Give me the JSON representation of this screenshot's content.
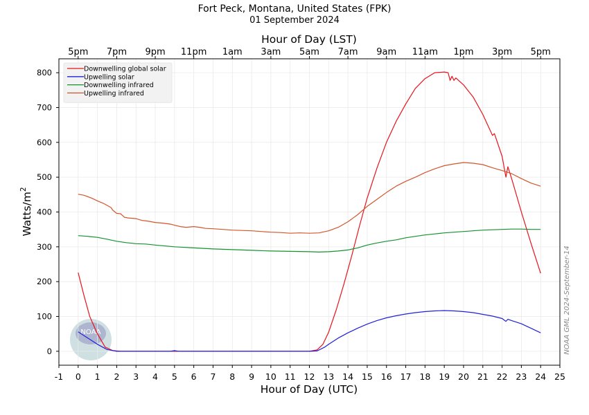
{
  "title_line1": "Fort Peck, Montana, United States (FPK)",
  "title_line2": "01 September 2024",
  "watermark": "NOAA GML 2024-September-14",
  "logo_text": "NOAA",
  "colors": {
    "global": "#e8121a",
    "upsolar": "#1f1fdc",
    "dwir": "#12922e",
    "upir": "#d2552a",
    "grid": "#e9e9e9"
  },
  "chart_data": {
    "type": "line",
    "title": "Fort Peck, Montana, United States (FPK)",
    "subtitle": "01 September 2024",
    "xlabel": "Hour of Day (UTC)",
    "x2label": "Hour of Day (LST)",
    "ylabel": "Watts/m",
    "ylabel_sup": "2",
    "xlim": [
      -1,
      25
    ],
    "ylim": [
      -40,
      840
    ],
    "x_ticks": [
      -1,
      0,
      1,
      2,
      3,
      4,
      5,
      6,
      7,
      8,
      9,
      10,
      11,
      12,
      13,
      14,
      15,
      16,
      17,
      18,
      19,
      20,
      21,
      22,
      23,
      24,
      25
    ],
    "y_ticks": [
      0,
      100,
      200,
      300,
      400,
      500,
      600,
      700,
      800
    ],
    "top_ticks": [
      {
        "utc": 0,
        "label": "5pm"
      },
      {
        "utc": 2,
        "label": "7pm"
      },
      {
        "utc": 4,
        "label": "9pm"
      },
      {
        "utc": 6,
        "label": "11pm"
      },
      {
        "utc": 8,
        "label": "1am"
      },
      {
        "utc": 10,
        "label": "3am"
      },
      {
        "utc": 12,
        "label": "5am"
      },
      {
        "utc": 14,
        "label": "7am"
      },
      {
        "utc": 16,
        "label": "9am"
      },
      {
        "utc": 18,
        "label": "11am"
      },
      {
        "utc": 20,
        "label": "1pm"
      },
      {
        "utc": 22,
        "label": "3pm"
      },
      {
        "utc": 24,
        "label": "5pm"
      }
    ],
    "grid": true,
    "legend_position": "top-left",
    "series": [
      {
        "name": "Downwelling global solar",
        "key": "global",
        "points": [
          [
            0,
            226
          ],
          [
            0.3,
            160
          ],
          [
            0.6,
            100
          ],
          [
            1,
            50
          ],
          [
            1.4,
            12
          ],
          [
            1.8,
            2
          ],
          [
            2.2,
            0
          ],
          [
            4,
            0
          ],
          [
            6,
            0
          ],
          [
            8,
            0
          ],
          [
            10,
            0
          ],
          [
            12,
            0
          ],
          [
            12.4,
            4
          ],
          [
            12.7,
            20
          ],
          [
            13,
            55
          ],
          [
            13.4,
            120
          ],
          [
            13.8,
            195
          ],
          [
            14.2,
            275
          ],
          [
            14.6,
            360
          ],
          [
            15,
            440
          ],
          [
            15.5,
            525
          ],
          [
            16,
            600
          ],
          [
            16.5,
            660
          ],
          [
            17,
            710
          ],
          [
            17.5,
            755
          ],
          [
            18,
            783
          ],
          [
            18.5,
            800
          ],
          [
            19,
            802
          ],
          [
            19.2,
            800
          ],
          [
            19.3,
            778
          ],
          [
            19.4,
            790
          ],
          [
            19.5,
            778
          ],
          [
            19.6,
            785
          ],
          [
            20,
            765
          ],
          [
            20.5,
            730
          ],
          [
            21,
            680
          ],
          [
            21.5,
            620
          ],
          [
            21.6,
            625
          ],
          [
            22,
            560
          ],
          [
            22.2,
            500
          ],
          [
            22.3,
            530
          ],
          [
            22.5,
            495
          ],
          [
            23,
            400
          ],
          [
            23.5,
            310
          ],
          [
            24,
            224
          ]
        ]
      },
      {
        "name": "Upwelling solar",
        "key": "upsolar",
        "points": [
          [
            0,
            56
          ],
          [
            0.5,
            38
          ],
          [
            1,
            20
          ],
          [
            1.5,
            5
          ],
          [
            2,
            0
          ],
          [
            4,
            0
          ],
          [
            4.8,
            0
          ],
          [
            5,
            2
          ],
          [
            5.2,
            0
          ],
          [
            8,
            0
          ],
          [
            10,
            0
          ],
          [
            12,
            0
          ],
          [
            12.4,
            1
          ],
          [
            12.8,
            12
          ],
          [
            13,
            20
          ],
          [
            13.5,
            38
          ],
          [
            14,
            53
          ],
          [
            14.5,
            66
          ],
          [
            15,
            78
          ],
          [
            15.5,
            88
          ],
          [
            16,
            96
          ],
          [
            16.5,
            102
          ],
          [
            17,
            107
          ],
          [
            17.5,
            111
          ],
          [
            18,
            114
          ],
          [
            18.5,
            116
          ],
          [
            19,
            117
          ],
          [
            19.5,
            116
          ],
          [
            20,
            114
          ],
          [
            20.5,
            111
          ],
          [
            21,
            106
          ],
          [
            21.5,
            101
          ],
          [
            22,
            94
          ],
          [
            22.2,
            86
          ],
          [
            22.3,
            92
          ],
          [
            22.5,
            88
          ],
          [
            23,
            79
          ],
          [
            23.5,
            66
          ],
          [
            24,
            53
          ]
        ]
      },
      {
        "name": "Downwelling infrared",
        "key": "dwir",
        "points": [
          [
            0,
            332
          ],
          [
            0.5,
            330
          ],
          [
            1,
            327
          ],
          [
            1.5,
            322
          ],
          [
            2,
            316
          ],
          [
            2.5,
            312
          ],
          [
            3,
            309
          ],
          [
            3.5,
            308
          ],
          [
            4,
            305
          ],
          [
            5,
            300
          ],
          [
            6,
            297
          ],
          [
            7,
            294
          ],
          [
            8,
            292
          ],
          [
            9,
            290
          ],
          [
            10,
            288
          ],
          [
            11,
            287
          ],
          [
            12,
            286
          ],
          [
            12.5,
            285
          ],
          [
            13,
            286
          ],
          [
            13.5,
            288
          ],
          [
            14,
            291
          ],
          [
            14.5,
            297
          ],
          [
            15,
            305
          ],
          [
            15.5,
            311
          ],
          [
            16,
            316
          ],
          [
            16.5,
            320
          ],
          [
            17,
            326
          ],
          [
            17.5,
            330
          ],
          [
            18,
            334
          ],
          [
            18.5,
            337
          ],
          [
            19,
            340
          ],
          [
            19.5,
            342
          ],
          [
            20,
            344
          ],
          [
            20.5,
            346
          ],
          [
            21,
            348
          ],
          [
            21.5,
            349
          ],
          [
            22,
            350
          ],
          [
            22.5,
            351
          ],
          [
            23,
            351
          ],
          [
            23.5,
            350
          ],
          [
            24,
            350
          ]
        ]
      },
      {
        "name": "Upwelling infrared",
        "key": "upir",
        "points": [
          [
            0,
            451
          ],
          [
            0.3,
            448
          ],
          [
            0.7,
            440
          ],
          [
            1,
            432
          ],
          [
            1.3,
            425
          ],
          [
            1.7,
            413
          ],
          [
            1.8,
            405
          ],
          [
            2,
            396
          ],
          [
            2.2,
            395
          ],
          [
            2.4,
            385
          ],
          [
            2.6,
            383
          ],
          [
            3,
            381
          ],
          [
            3.3,
            376
          ],
          [
            3.6,
            374
          ],
          [
            4,
            370
          ],
          [
            4.4,
            368
          ],
          [
            4.8,
            365
          ],
          [
            5,
            362
          ],
          [
            5.3,
            358
          ],
          [
            5.6,
            356
          ],
          [
            6,
            358
          ],
          [
            6.3,
            356
          ],
          [
            6.6,
            353
          ],
          [
            7,
            352
          ],
          [
            7.5,
            350
          ],
          [
            8,
            348
          ],
          [
            8.5,
            347
          ],
          [
            9,
            346
          ],
          [
            9.5,
            344
          ],
          [
            10,
            342
          ],
          [
            10.5,
            341
          ],
          [
            11,
            339
          ],
          [
            11.5,
            340
          ],
          [
            12,
            339
          ],
          [
            12.5,
            340
          ],
          [
            13,
            346
          ],
          [
            13.5,
            356
          ],
          [
            14,
            372
          ],
          [
            14.5,
            392
          ],
          [
            15,
            416
          ],
          [
            15.5,
            436
          ],
          [
            16,
            456
          ],
          [
            16.5,
            474
          ],
          [
            17,
            488
          ],
          [
            17.5,
            500
          ],
          [
            18,
            513
          ],
          [
            18.5,
            524
          ],
          [
            19,
            533
          ],
          [
            19.5,
            538
          ],
          [
            20,
            542
          ],
          [
            20.5,
            540
          ],
          [
            21,
            536
          ],
          [
            21.5,
            527
          ],
          [
            22,
            519
          ],
          [
            22.5,
            510
          ],
          [
            23,
            496
          ],
          [
            23.5,
            483
          ],
          [
            24,
            474
          ]
        ]
      }
    ]
  }
}
